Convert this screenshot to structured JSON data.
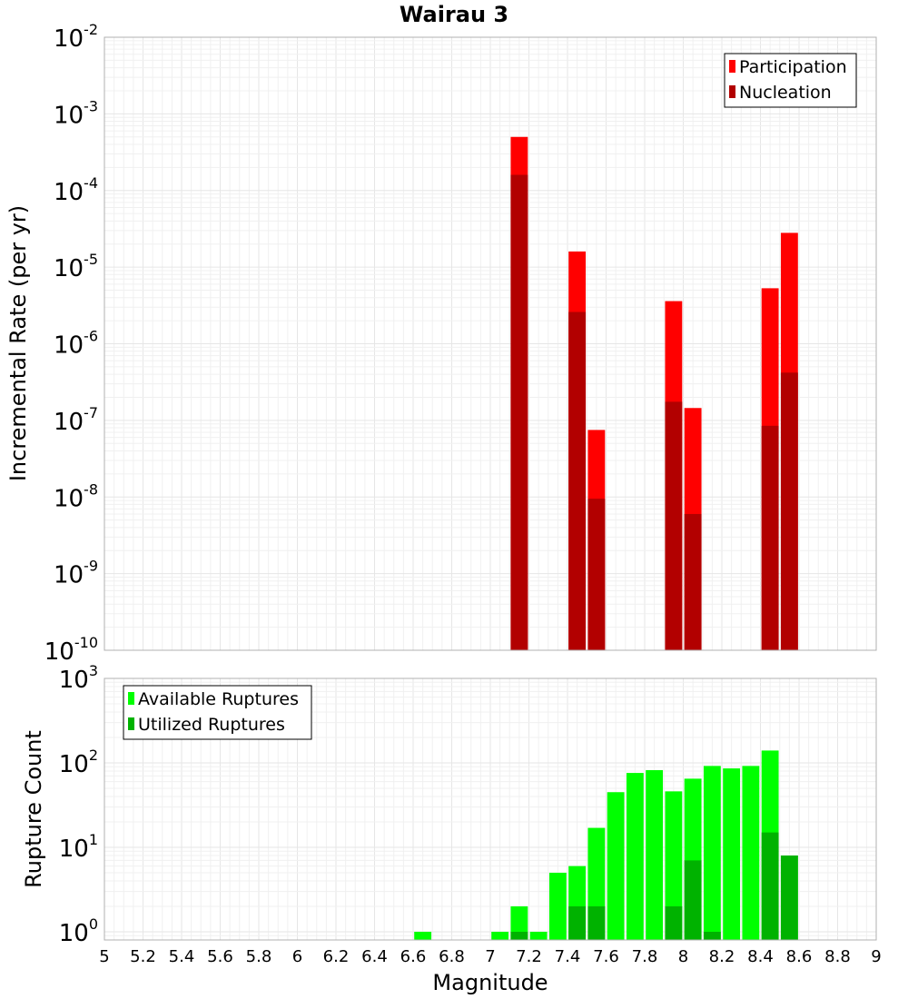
{
  "chart_data": {
    "title": "Wairau 3",
    "xlabel": "Magnitude",
    "x_ticks": [
      "5",
      "5.2",
      "5.4",
      "5.6",
      "5.8",
      "6",
      "6.2",
      "6.4",
      "6.6",
      "6.8",
      "7",
      "7.2",
      "7.4",
      "7.6",
      "7.8",
      "8",
      "8.2",
      "8.4",
      "8.6",
      "8.8",
      "9"
    ],
    "xlim": [
      5,
      9
    ],
    "bin_width": 0.1,
    "panels": [
      {
        "type": "bar",
        "scale": "log",
        "ylabel": "Incremental Rate (per yr)",
        "ylim": [
          1e-10,
          0.01
        ],
        "y_ticks": [
          {
            "base": "10",
            "exp": "-2"
          },
          {
            "base": "10",
            "exp": "-3"
          },
          {
            "base": "10",
            "exp": "-4"
          },
          {
            "base": "10",
            "exp": "-5"
          },
          {
            "base": "10",
            "exp": "-6"
          },
          {
            "base": "10",
            "exp": "-7"
          },
          {
            "base": "10",
            "exp": "-8"
          },
          {
            "base": "10",
            "exp": "-9"
          },
          {
            "base": "10",
            "exp": "-10"
          }
        ],
        "legend_position": "top-right",
        "series": [
          {
            "name": "Participation",
            "color": "#ff0000",
            "x": [
              7.15,
              7.45,
              7.55,
              7.95,
              8.05,
              8.45,
              8.55
            ],
            "values": [
              0.0005,
              1.6e-05,
              7.5e-08,
              3.6e-06,
              1.45e-07,
              5.3e-06,
              2.8e-05
            ]
          },
          {
            "name": "Nucleation",
            "color": "#b20000",
            "x": [
              7.15,
              7.45,
              7.55,
              7.95,
              8.05,
              8.45,
              8.55
            ],
            "values": [
              0.00016,
              2.6e-06,
              9.5e-09,
              1.75e-07,
              6e-09,
              8.5e-08,
              4.2e-07
            ]
          }
        ]
      },
      {
        "type": "bar",
        "scale": "log",
        "ylabel": "Rupture Count",
        "ylim": [
          0.8,
          1000
        ],
        "y_ticks": [
          {
            "base": "10",
            "exp": "3"
          },
          {
            "base": "10",
            "exp": "2"
          },
          {
            "base": "10",
            "exp": "1"
          },
          {
            "base": "10",
            "exp": "0"
          }
        ],
        "legend_position": "top-left",
        "series": [
          {
            "name": "Available Ruptures",
            "color": "#00ff00",
            "x": [
              6.65,
              7.05,
              7.15,
              7.25,
              7.35,
              7.45,
              7.55,
              7.65,
              7.75,
              7.85,
              7.95,
              8.05,
              8.15,
              8.25,
              8.35,
              8.45,
              8.55
            ],
            "values": [
              1,
              1,
              2,
              1,
              5,
              6,
              17,
              45,
              76,
              82,
              46,
              65,
              92,
              86,
              92,
              140,
              8
            ]
          },
          {
            "name": "Utilized Ruptures",
            "color": "#00b200",
            "x": [
              7.15,
              7.45,
              7.55,
              7.95,
              8.05,
              8.15,
              8.45,
              8.55
            ],
            "values": [
              1,
              2,
              2,
              2,
              7,
              1,
              15,
              8
            ]
          }
        ]
      }
    ]
  }
}
